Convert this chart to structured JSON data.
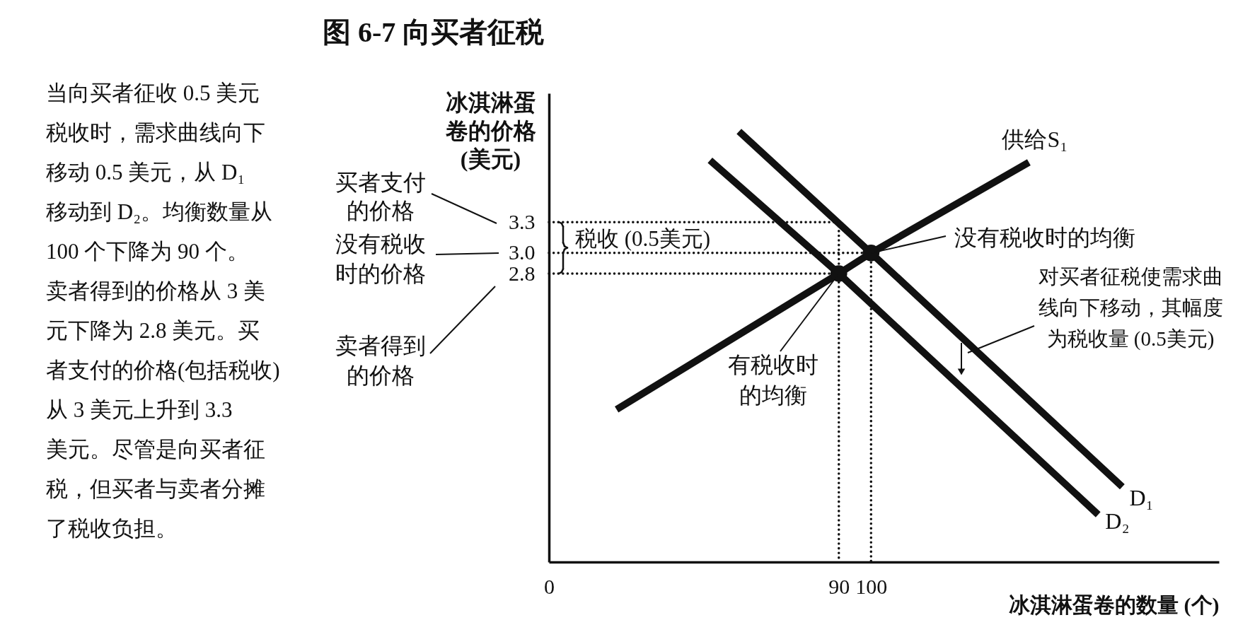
{
  "chart_data": {
    "type": "line",
    "title": "图 6-7 向买者征税",
    "xlabel": "冰淇淋蛋卷的数量 (个)",
    "ylabel": "冰淇淋蛋卷的价格 (美元)",
    "xlim": [
      0,
      208
    ],
    "ylim": [
      0,
      4.55
    ],
    "xticks": [
      0,
      90,
      100
    ],
    "yticks": [
      2.8,
      {
        "value": 3,
        "label": "3.0"
      },
      3.3
    ],
    "grid": false,
    "line_style": "solid",
    "series": [
      {
        "name": "供给S₁",
        "color": "#111111",
        "x": [
          21,
          90,
          100,
          149
        ],
        "values": [
          1.48,
          2.8,
          3,
          3.88
        ]
      },
      {
        "name": "D₁",
        "color": "#111111",
        "x": [
          59,
          100,
          178
        ],
        "values": [
          4.18,
          3,
          0.73
        ]
      },
      {
        "name": "D₂",
        "color": "#111111",
        "x": [
          50,
          90,
          170.5
        ],
        "values": [
          3.9,
          2.8,
          0.46
        ]
      },
      {
        "type": "line",
        "line_style": "dotted",
        "color": "#111111",
        "x": [
          0,
          90,
          90
        ],
        "values": [
          3.3,
          3.3,
          0
        ]
      },
      {
        "type": "line",
        "line_style": "dotted",
        "color": "#111111",
        "x": [
          0,
          100,
          100
        ],
        "values": [
          3,
          3,
          0
        ]
      },
      {
        "type": "line",
        "line_style": "dotted",
        "color": "#111111",
        "x": [
          0,
          90
        ],
        "values": [
          2.8,
          2.8
        ]
      },
      {
        "type": "scatter",
        "marker": "circle",
        "color": "#111111",
        "x": [
          100,
          90
        ],
        "values": [
          3,
          2.8
        ]
      }
    ],
    "annotations": [
      "买者支付的价格",
      "没有税收时的价格",
      "卖者得到的价格",
      "税收 (0.5美元)",
      {
        "text": "没有税收时的均衡",
        "x": 100,
        "y": 3
      },
      {
        "text": "有税收时的均衡",
        "x": 90,
        "y": 2.8
      },
      "对买者征税使需求曲线向下移动，其幅度为税收量 (0.5美元)",
      "当向买者征收 0.5 美元税收时，需求曲线向下移动 0.5 美元，从 D₁ 移动到 D₂。均衡数量从 100 个下降为 90 个。卖者得到的价格从 3 美元下降为 2.8 美元。买者支付的价格(包括税收)从 3 美元上升到 3.3 美元。尽管是向买者征税，但买者与卖者分摊了税收负担。"
    ]
  }
}
